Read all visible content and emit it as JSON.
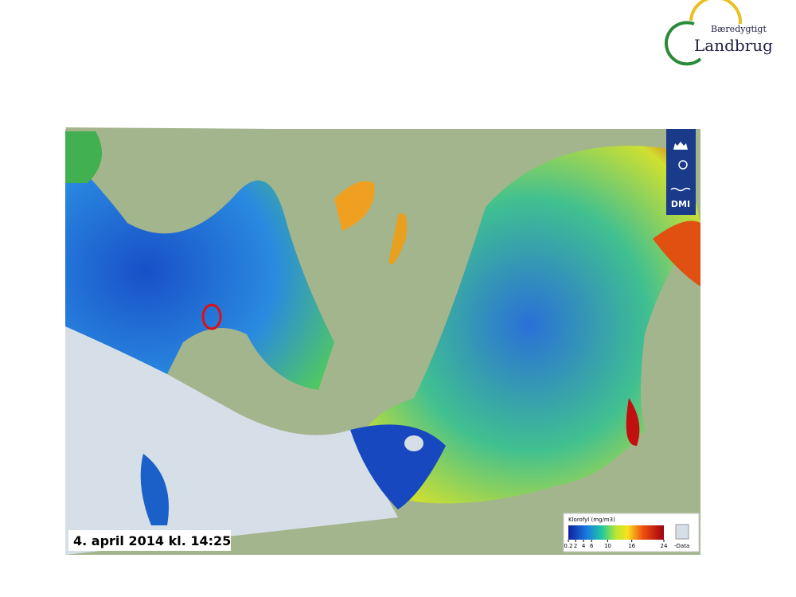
{
  "logo": {
    "line1": "Bæredygtigt",
    "line2": "Landbrug"
  },
  "map": {
    "badge": "DMI",
    "caption": "4. april 2014 kl. 14:25",
    "legend": {
      "title": "Klorofyl (mg/m3)",
      "ticks": [
        0.2,
        2,
        4,
        6,
        10,
        16,
        24
      ],
      "nodata": "-Data"
    }
  }
}
